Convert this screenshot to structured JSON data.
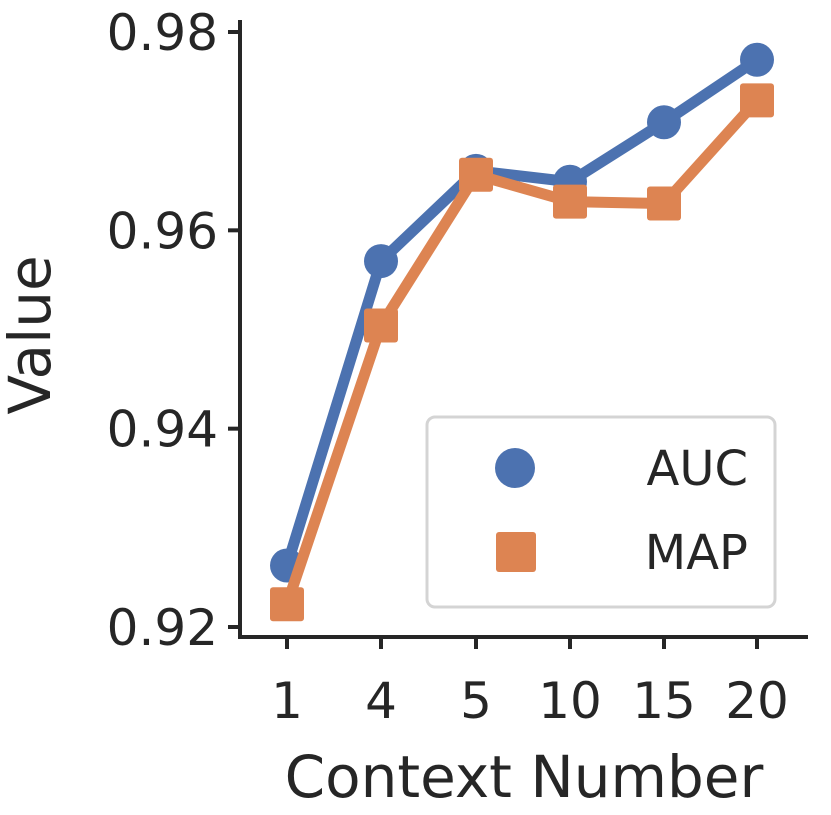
{
  "chart_data": {
    "type": "line",
    "title": "",
    "xlabel": "Context Number",
    "ylabel": "Value",
    "categories": [
      "1",
      "4",
      "5",
      "10",
      "15",
      "20"
    ],
    "ylim": [
      0.92,
      0.98
    ],
    "yticks": [
      "0.92",
      "0.94",
      "0.96",
      "0.98"
    ],
    "grid": false,
    "legend_position": "lower-right",
    "series": [
      {
        "name": "AUC",
        "marker": "circle",
        "color": "#4C72B0",
        "values": [
          0.9262,
          0.9569,
          0.966,
          0.9649,
          0.9709,
          0.9772
        ]
      },
      {
        "name": "MAP",
        "marker": "square",
        "color": "#DD8452",
        "values": [
          0.9223,
          0.9504,
          0.9656,
          0.9629,
          0.9627,
          0.9731
        ]
      }
    ]
  }
}
